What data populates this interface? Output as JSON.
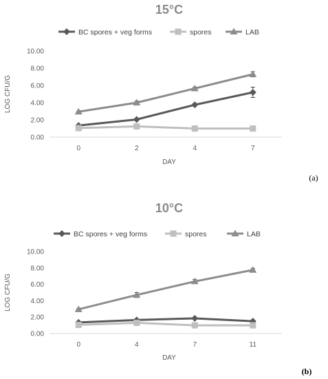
{
  "chart_data": [
    {
      "type": "line",
      "title": "15°C",
      "panel_label": "(a)",
      "xlabel": "DAY",
      "ylabel": "LOG CFU/G",
      "categories": [
        "0",
        "2",
        "4",
        "7"
      ],
      "ylim": [
        0,
        10
      ],
      "yticks": [
        "0.00",
        "2.00",
        "4.00",
        "6.00",
        "8.00",
        "10.00"
      ],
      "grid": false,
      "legend_position": "top",
      "series": [
        {
          "name": "BC spores + veg forms",
          "marker": "diamond",
          "color": "#595959",
          "values": [
            1.35,
            2.05,
            3.75,
            5.2
          ],
          "errors": [
            0.1,
            0.1,
            0.15,
            0.6
          ]
        },
        {
          "name": "spores",
          "marker": "square",
          "color": "#bfbfbf",
          "values": [
            1.05,
            1.25,
            1.0,
            1.0
          ],
          "errors": [
            0,
            0,
            0,
            0
          ]
        },
        {
          "name": "LAB",
          "marker": "triangle",
          "color": "#8c8c8c",
          "values": [
            2.95,
            4.0,
            5.65,
            7.3
          ],
          "errors": [
            0.1,
            0.2,
            0.15,
            0.3
          ]
        }
      ]
    },
    {
      "type": "line",
      "title": "10°C",
      "panel_label": "(b)",
      "xlabel": "DAY",
      "ylabel": "LOG CFU/G",
      "categories": [
        "0",
        "4",
        "7",
        "11"
      ],
      "ylim": [
        0,
        10
      ],
      "yticks": [
        "0.00",
        "2.00",
        "4.00",
        "6.00",
        "8.00",
        "10.00"
      ],
      "grid": false,
      "legend_position": "top",
      "series": [
        {
          "name": "BC spores + veg forms",
          "marker": "diamond",
          "color": "#595959",
          "values": [
            1.35,
            1.65,
            1.85,
            1.5
          ],
          "errors": [
            0.1,
            0.1,
            0.1,
            0.1
          ]
        },
        {
          "name": "spores",
          "marker": "square",
          "color": "#bfbfbf",
          "values": [
            1.05,
            1.3,
            1.0,
            1.0
          ],
          "errors": [
            0,
            0,
            0,
            0
          ]
        },
        {
          "name": "LAB",
          "marker": "triangle",
          "color": "#8c8c8c",
          "values": [
            2.95,
            4.7,
            6.35,
            7.75
          ],
          "errors": [
            0.1,
            0.3,
            0.25,
            0.2
          ]
        }
      ]
    }
  ]
}
